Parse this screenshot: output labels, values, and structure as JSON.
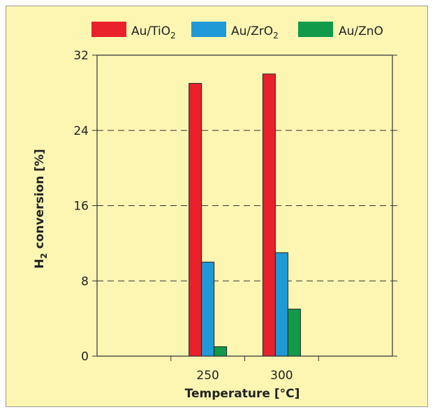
{
  "chart_data": {
    "type": "bar",
    "categories": [
      "250",
      "300"
    ],
    "series": [
      {
        "name": "Au/TiO",
        "subscript": "2",
        "color": "#e8212a",
        "values": [
          29,
          30
        ]
      },
      {
        "name": "Au/ZrO",
        "subscript": "2",
        "color": "#1f9ad6",
        "values": [
          10,
          11
        ]
      },
      {
        "name": "Au/ZnO",
        "subscript": "",
        "color": "#119a4a",
        "values": [
          1,
          5
        ]
      }
    ],
    "xlabel": "Temperature [°C]",
    "ylabel": {
      "prefix": "H",
      "subscript": "2",
      "suffix": " conversion [%]"
    },
    "ylim": [
      0,
      32
    ],
    "yticks": [
      "0",
      "8",
      "16",
      "24",
      "32"
    ],
    "grid": "dashed horizontal",
    "legend_position": "top",
    "background": "#fdf6b3"
  }
}
